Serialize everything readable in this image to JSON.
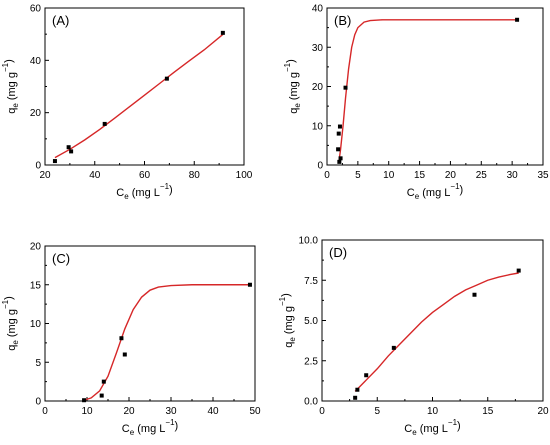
{
  "chart_data": [
    {
      "type": "scatter",
      "panel_label": "(A)",
      "xlabel_main": "C",
      "xlabel_sub": "e",
      "xlabel_unit_a": " (mg L",
      "xlabel_sup": "−1",
      "xlabel_unit_b": ")",
      "ylabel_main": "q",
      "ylabel_sub": "e",
      "ylabel_unit_a": " (mg g",
      "ylabel_sup": "−1",
      "ylabel_unit_b": ")",
      "xlim": [
        20,
        100
      ],
      "ylim": [
        0,
        60
      ],
      "xticks": [
        20,
        40,
        60,
        80,
        100
      ],
      "yticks": [
        0,
        20,
        40,
        60
      ],
      "points": [
        [
          24,
          1.5
        ],
        [
          29.5,
          6.8
        ],
        [
          30.5,
          5.2
        ],
        [
          44,
          15.7
        ],
        [
          69,
          33
        ],
        [
          91.5,
          50.5
        ]
      ],
      "fit_curve": [
        [
          24,
          2.8
        ],
        [
          30,
          6.0
        ],
        [
          36,
          9.6
        ],
        [
          42,
          13.6
        ],
        [
          48,
          17.9
        ],
        [
          54,
          22.3
        ],
        [
          60,
          26.7
        ],
        [
          66,
          31.1
        ],
        [
          72,
          35.5
        ],
        [
          78,
          39.8
        ],
        [
          84,
          44.0
        ],
        [
          91.5,
          49.9
        ]
      ],
      "colors": {
        "points": "#000000",
        "fit": "#d62728"
      }
    },
    {
      "type": "scatter",
      "panel_label": "(B)",
      "xlabel_main": "C",
      "xlabel_sub": "e",
      "xlabel_unit_a": " (mg L",
      "xlabel_sup": "−1",
      "xlabel_unit_b": ")",
      "ylabel_main": "q",
      "ylabel_sub": "e",
      "ylabel_unit_a": " (mg g",
      "ylabel_sup": "−1",
      "ylabel_unit_b": ")",
      "xlim": [
        0,
        35
      ],
      "ylim": [
        0,
        40
      ],
      "xticks": [
        0,
        5,
        10,
        15,
        20,
        25,
        30,
        35
      ],
      "yticks": [
        0,
        10,
        20,
        30,
        40
      ],
      "points": [
        [
          1.8,
          4
        ],
        [
          1.9,
          8
        ],
        [
          2.0,
          0.8
        ],
        [
          2.1,
          9.8
        ],
        [
          2.2,
          1.7
        ],
        [
          3.0,
          19.7
        ],
        [
          30.8,
          37
        ]
      ],
      "fit_curve": [
        [
          1.9,
          0.5
        ],
        [
          2.2,
          4.0
        ],
        [
          2.6,
          10.0
        ],
        [
          3.0,
          17.0
        ],
        [
          3.5,
          24.5
        ],
        [
          4.0,
          30.0
        ],
        [
          4.5,
          33.2
        ],
        [
          5.0,
          35.0
        ],
        [
          6.0,
          36.4
        ],
        [
          7.0,
          36.8
        ],
        [
          9.0,
          37.0
        ],
        [
          15.0,
          37.0
        ],
        [
          20.0,
          37.0
        ],
        [
          25.0,
          37.0
        ],
        [
          30.8,
          37.0
        ]
      ],
      "colors": {
        "points": "#000000",
        "fit": "#d62728"
      }
    },
    {
      "type": "scatter",
      "panel_label": "(C)",
      "xlabel_main": "C",
      "xlabel_sub": "e",
      "xlabel_unit_a": " (mg L",
      "xlabel_sup": "−1",
      "xlabel_unit_b": ")",
      "ylabel_main": "q",
      "ylabel_sub": "e",
      "ylabel_unit_a": " (mg g",
      "ylabel_sup": "−1",
      "ylabel_unit_b": ")",
      "xlim": [
        0,
        50
      ],
      "ylim": [
        0,
        20
      ],
      "xticks": [
        0,
        10,
        20,
        30,
        40,
        50
      ],
      "yticks": [
        0,
        5,
        10,
        15,
        20
      ],
      "points": [
        [
          9.3,
          0.1
        ],
        [
          13.5,
          0.7
        ],
        [
          14.0,
          2.5
        ],
        [
          18.2,
          8.1
        ],
        [
          19.0,
          6.0
        ],
        [
          48.8,
          15.0
        ]
      ],
      "fit_curve": [
        [
          9.3,
          0.1
        ],
        [
          11,
          0.4
        ],
        [
          13,
          1.3
        ],
        [
          15,
          3.2
        ],
        [
          17,
          6.2
        ],
        [
          19,
          9.3
        ],
        [
          21,
          11.8
        ],
        [
          23,
          13.4
        ],
        [
          25,
          14.3
        ],
        [
          27,
          14.7
        ],
        [
          30,
          14.9
        ],
        [
          35,
          15.0
        ],
        [
          40,
          15.0
        ],
        [
          48.8,
          15.0
        ]
      ],
      "colors": {
        "points": "#000000",
        "fit": "#d62728"
      }
    },
    {
      "type": "scatter",
      "panel_label": "(D)",
      "xlabel_main": "C",
      "xlabel_sub": "e",
      "xlabel_unit_a": " (mg L",
      "xlabel_sup": "−1",
      "xlabel_unit_b": ")",
      "ylabel_main": "q",
      "ylabel_sub": "e",
      "ylabel_unit_a": " (mg g",
      "ylabel_sup": "−1",
      "ylabel_unit_b": ")",
      "xlim": [
        0,
        20
      ],
      "ylim": [
        0,
        10
      ],
      "xticks": [
        0,
        5,
        10,
        15,
        20
      ],
      "yticks": [
        0.0,
        2.5,
        5.0,
        7.5,
        10.0
      ],
      "ytick_labels": [
        "0.0",
        "2.5",
        "5.0",
        "7.5",
        "10.0"
      ],
      "points": [
        [
          3.0,
          0.2
        ],
        [
          3.2,
          0.7
        ],
        [
          4.0,
          1.6
        ],
        [
          6.5,
          3.3
        ],
        [
          13.8,
          6.6
        ],
        [
          17.8,
          8.1
        ]
      ],
      "fit_curve": [
        [
          3.0,
          0.6
        ],
        [
          4,
          1.3
        ],
        [
          5,
          2.0
        ],
        [
          6,
          2.8
        ],
        [
          7,
          3.5
        ],
        [
          8,
          4.2
        ],
        [
          9,
          4.9
        ],
        [
          10,
          5.5
        ],
        [
          11,
          6.0
        ],
        [
          12,
          6.5
        ],
        [
          13,
          6.9
        ],
        [
          14,
          7.2
        ],
        [
          15,
          7.5
        ],
        [
          16,
          7.7
        ],
        [
          17,
          7.85
        ],
        [
          17.8,
          7.95
        ]
      ],
      "colors": {
        "points": "#000000",
        "fit": "#d62728"
      }
    }
  ]
}
